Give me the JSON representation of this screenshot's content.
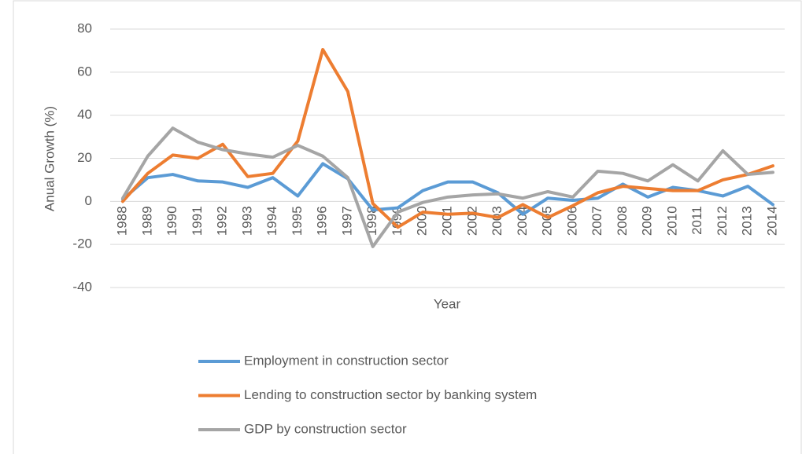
{
  "chart_data": {
    "type": "line",
    "x_label": "Year",
    "y_label": "Anual Growth (%)",
    "categories": [
      "1988",
      "1989",
      "1990",
      "1991",
      "1992",
      "1993",
      "1994",
      "1995",
      "1996",
      "1997",
      "1998",
      "1999",
      "2000",
      "2001",
      "2002",
      "2003",
      "2004",
      "2005",
      "2006",
      "2007",
      "2008",
      "2009",
      "2010",
      "2011",
      "2012",
      "2013",
      "2014"
    ],
    "series": [
      {
        "name": "Employment in construction sector",
        "color": "#5b9bd5",
        "values": [
          1,
          11,
          12.5,
          9.5,
          9,
          6.5,
          11,
          2.5,
          17.5,
          10.5,
          -4,
          -3,
          5,
          9,
          9,
          4,
          -6,
          1.5,
          0.5,
          1.5,
          8,
          2,
          6.5,
          5,
          2.5,
          7,
          -1.5
        ]
      },
      {
        "name": "Lending to construction sector by banking system",
        "color": "#ed7d31",
        "values": [
          0,
          13,
          21.5,
          20,
          26.5,
          11.5,
          13,
          28,
          70.5,
          51,
          -1,
          -12,
          -5,
          -6,
          -5.5,
          -7.5,
          -1.5,
          -7.5,
          -2,
          4,
          7,
          6,
          5,
          5,
          10,
          12.5,
          16.5
        ]
      },
      {
        "name": "GDP by construction sector",
        "color": "#a5a5a5",
        "values": [
          1.5,
          21,
          34,
          27.5,
          24,
          22,
          20.5,
          26,
          21,
          11,
          -21,
          -5,
          -0.5,
          2,
          3,
          3.5,
          1.5,
          4.5,
          2,
          14,
          13,
          9.5,
          17,
          9.5,
          23.5,
          12.5,
          13.5
        ]
      }
    ],
    "ylim": [
      -40,
      80
    ],
    "yticks": [
      -40,
      -20,
      0,
      20,
      40,
      60,
      80
    ],
    "grid": true,
    "legend": "bottom"
  }
}
